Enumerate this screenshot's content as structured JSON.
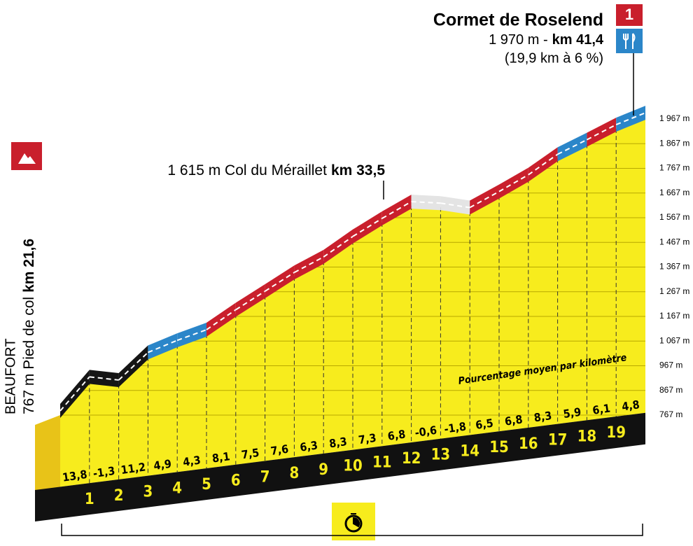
{
  "chart_data": {
    "type": "profile",
    "title": "Cormet de Roselend",
    "summit_altitude": "1 970 m -",
    "summit_km": "km 41,4",
    "summit_detail": "(19,9 km à 6 %)",
    "category": 1,
    "col_label": "1 615 m Col du Méraillet",
    "col_km": "km 33,5",
    "start_name": "BEAUFORT",
    "start_label": "767 m Pied de col",
    "start_km": "km 21,6",
    "annotation": "Pourcentage moyen par kilomètre",
    "values": [
      13.8,
      -1.3,
      11.2,
      4.9,
      4.3,
      8.1,
      7.5,
      7.6,
      6.3,
      8.3,
      7.3,
      6.8,
      -0.6,
      -1.8,
      6.5,
      6.8,
      8.3,
      5.9,
      6.1,
      4.8
    ],
    "value_labels": [
      "13,8",
      "-1,3",
      "11,2",
      "4,9",
      "4,3",
      "8,1",
      "7,5",
      "7,6",
      "6,3",
      "8,3",
      "7,3",
      "6,8",
      "-0,6",
      "-1,8",
      "6,5",
      "6,8",
      "8,3",
      "5,9",
      "6,1",
      "4,8"
    ],
    "colors": [
      "#151515",
      "#151515",
      "#151515",
      "#2b86c9",
      "#2b86c9",
      "#c91f2c",
      "#c91f2c",
      "#c91f2c",
      "#c91f2c",
      "#c91f2c",
      "#c91f2c",
      "#c91f2c",
      "#e4e4e4",
      "#e4e4e4",
      "#c91f2c",
      "#c91f2c",
      "#c91f2c",
      "#2b86c9",
      "#c91f2c",
      "#2b86c9"
    ],
    "km_markers": [
      1,
      2,
      3,
      4,
      5,
      6,
      7,
      8,
      9,
      10,
      11,
      12,
      13,
      14,
      15,
      16,
      17,
      18,
      19
    ],
    "ylim": [
      767,
      1967
    ],
    "yticks": [
      {
        "value": 1967,
        "label": "1 967 m"
      },
      {
        "value": 1867,
        "label": "1 867 m"
      },
      {
        "value": 1767,
        "label": "1 767 m"
      },
      {
        "value": 1667,
        "label": "1 667 m"
      },
      {
        "value": 1567,
        "label": "1 567 m"
      },
      {
        "value": 1467,
        "label": "1 467 m"
      },
      {
        "value": 1367,
        "label": "1 367 m"
      },
      {
        "value": 1267,
        "label": "1 267 m"
      },
      {
        "value": 1167,
        "label": "1 167 m"
      },
      {
        "value": 1067,
        "label": "1 067 m"
      },
      {
        "value": 967,
        "label": "967 m"
      },
      {
        "value": 867,
        "label": "867 m"
      },
      {
        "value": 767,
        "label": "767 m"
      }
    ],
    "grid": true
  }
}
